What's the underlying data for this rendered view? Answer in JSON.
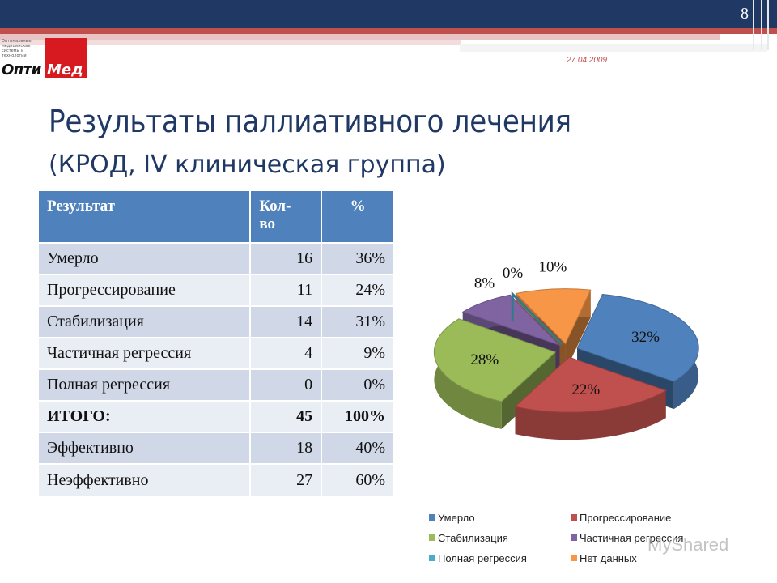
{
  "slide": {
    "page_number": "8",
    "date": "27.04.2009",
    "logo_tagline": "Оптимальные медицинские системы и технологии",
    "logo_left": "Опти",
    "logo_right": "Мед",
    "title_line1": "Результаты паллиативного лечения",
    "title_line2": "(КРОД, IV клиническая группа)",
    "watermark": "MyShared"
  },
  "table": {
    "headers": [
      "Результат",
      "Кол-\nво",
      "%"
    ],
    "rows": [
      {
        "label": "Умерло",
        "count": "16",
        "pct": "36%"
      },
      {
        "label": "Прогрессирование",
        "count": "11",
        "pct": "24%"
      },
      {
        "label": "Стабилизация",
        "count": "14",
        "pct": "31%"
      },
      {
        "label": "Частичная регрессия",
        "count": "4",
        "pct": "9%"
      },
      {
        "label": "Полная регрессия",
        "count": "0",
        "pct": "0%"
      },
      {
        "label": "ИТОГО:",
        "count": "45",
        "pct": "100%"
      },
      {
        "label": "Эффективно",
        "count": "18",
        "pct": "40%"
      },
      {
        "label": "Неэффективно",
        "count": "27",
        "pct": "60%"
      }
    ]
  },
  "chart_data": {
    "type": "pie",
    "title": "",
    "labels": [
      "Умерло",
      "Прогрессирование",
      "Стабилизация",
      "Частичная регрессия",
      "Полная регрессия",
      "Нет данных"
    ],
    "values": [
      32,
      22,
      28,
      8,
      0,
      10
    ],
    "value_labels": [
      "32%",
      "22%",
      "28%",
      "8%",
      "0%",
      "10%"
    ],
    "colors": [
      "#4f81bd",
      "#c0504d",
      "#9bbb59",
      "#8064a2",
      "#4bacc6",
      "#f79646"
    ],
    "exploded": true,
    "three_d": true,
    "legend_placement": "bottom"
  }
}
